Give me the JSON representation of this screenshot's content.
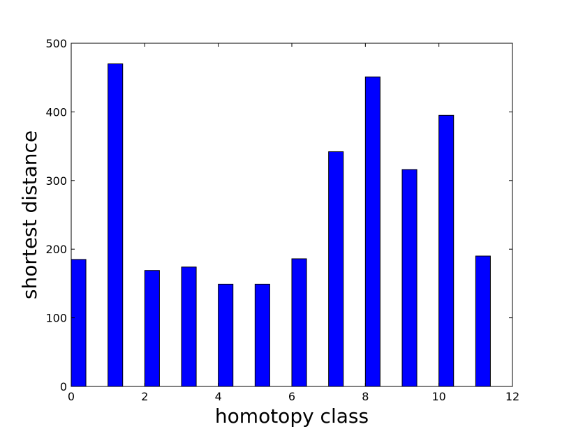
{
  "chart_data": {
    "type": "bar",
    "x": [
      0,
      1,
      2,
      3,
      4,
      5,
      6,
      7,
      8,
      9,
      10,
      11
    ],
    "values": [
      185,
      470,
      169,
      174,
      149,
      149,
      186,
      342,
      451,
      316,
      395,
      190
    ],
    "bar_width": 0.4,
    "xlabel": "homotopy class",
    "ylabel": "shortest distance",
    "xlim": [
      0,
      12
    ],
    "ylim": [
      0,
      500
    ],
    "x_ticks": [
      "0",
      "2",
      "4",
      "6",
      "8",
      "10",
      "12"
    ],
    "y_ticks": [
      "0",
      "100",
      "200",
      "300",
      "400",
      "500"
    ],
    "grid": false,
    "colors": {
      "bar_fill": "#0000ff",
      "bar_edge": "#000000",
      "axes": "#000000"
    }
  }
}
